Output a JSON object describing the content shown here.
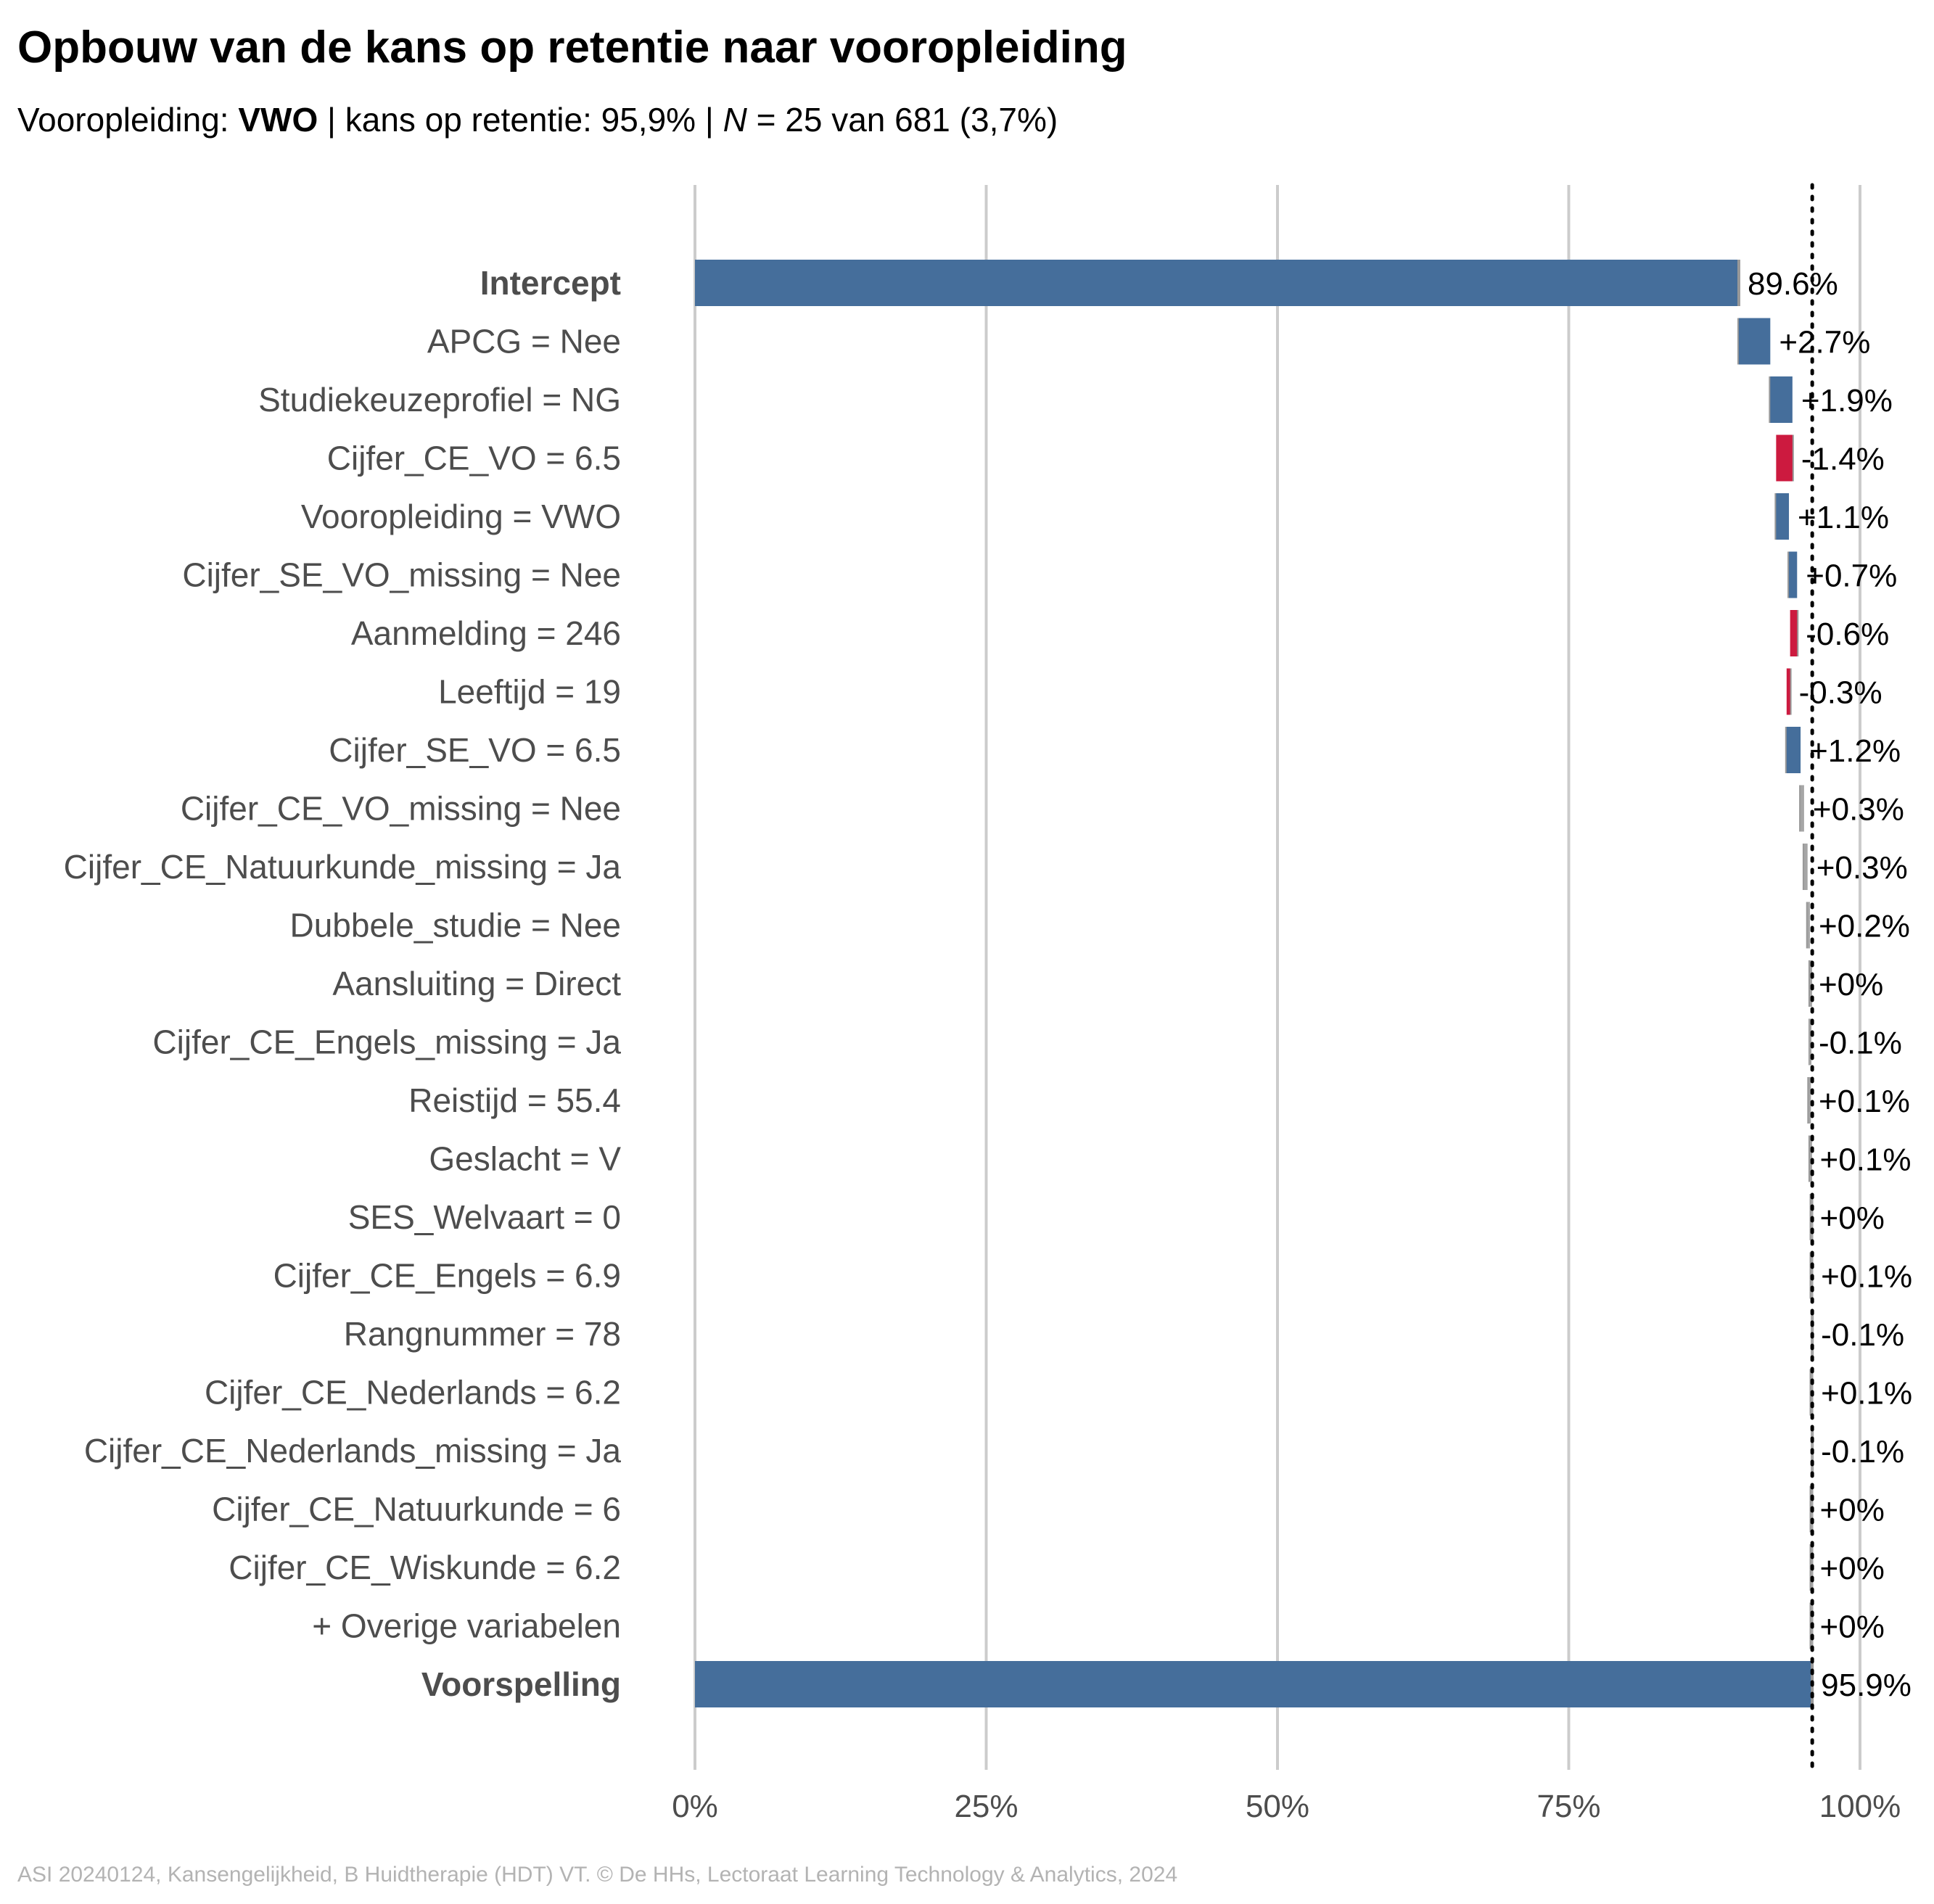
{
  "title": "Opbouw van de kans op retentie naar vooropleiding",
  "subtitle": {
    "prefix": "Vooropleiding: ",
    "group": "VWO",
    "middle": " | kans op retentie: 95,9% | ",
    "n_symbol": "N",
    "suffix": " = 25 van 681 (3,7%)"
  },
  "caption": "ASI 20240124, Kansengelijkheid, B Huidtherapie (HDT) VT. © De HHs, Lectoraat Learning Technology & Analytics, 2024",
  "colors": {
    "positive": "#456e9b",
    "negative": "#cc1a3f",
    "neutral": "#a6a6a6",
    "grid": "#cccccc",
    "connector": "#999999"
  },
  "chart_data": {
    "type": "waterfall",
    "xlim": [
      0,
      100
    ],
    "x_ticks": [
      "0%",
      "25%",
      "50%",
      "75%",
      "100%"
    ],
    "reference_line": 95.9,
    "rows": [
      {
        "label": "Intercept",
        "value": 89.6,
        "text": "89.6%",
        "kind": "total"
      },
      {
        "label": "APCG = Nee",
        "value": 2.7,
        "text": "+2.7%",
        "kind": "positive"
      },
      {
        "label": "Studiekeuzeprofiel = NG",
        "value": 1.9,
        "text": "+1.9%",
        "kind": "positive"
      },
      {
        "label": "Cijfer_CE_VO = 6.5",
        "value": -1.4,
        "text": "-1.4%",
        "kind": "negative"
      },
      {
        "label": "Vooropleiding = VWO",
        "value": 1.1,
        "text": "+1.1%",
        "kind": "positive"
      },
      {
        "label": "Cijfer_SE_VO_missing = Nee",
        "value": 0.7,
        "text": "+0.7%",
        "kind": "positive"
      },
      {
        "label": "Aanmelding = 246",
        "value": -0.6,
        "text": "-0.6%",
        "kind": "negative"
      },
      {
        "label": "Leeftijd = 19",
        "value": -0.3,
        "text": "-0.3%",
        "kind": "negative"
      },
      {
        "label": "Cijfer_SE_VO = 6.5",
        "value": 1.2,
        "text": "+1.2%",
        "kind": "positive"
      },
      {
        "label": "Cijfer_CE_VO_missing = Nee",
        "value": 0.3,
        "text": "+0.3%",
        "kind": "neutral"
      },
      {
        "label": "Cijfer_CE_Natuurkunde_missing = Ja",
        "value": 0.3,
        "text": "+0.3%",
        "kind": "neutral"
      },
      {
        "label": "Dubbele_studie = Nee",
        "value": 0.2,
        "text": "+0.2%",
        "kind": "neutral"
      },
      {
        "label": "Aansluiting = Direct",
        "value": 0,
        "text": "+0%",
        "kind": "neutral"
      },
      {
        "label": "Cijfer_CE_Engels_missing = Ja",
        "value": -0.1,
        "text": "-0.1%",
        "kind": "neutral"
      },
      {
        "label": "Reistijd = 55.4",
        "value": 0.1,
        "text": "+0.1%",
        "kind": "neutral"
      },
      {
        "label": "Geslacht = V",
        "value": 0.1,
        "text": "+0.1%",
        "kind": "neutral"
      },
      {
        "label": "SES_Welvaart = 0",
        "value": 0,
        "text": "+0%",
        "kind": "neutral"
      },
      {
        "label": "Cijfer_CE_Engels = 6.9",
        "value": 0.1,
        "text": "+0.1%",
        "kind": "neutral"
      },
      {
        "label": "Rangnummer = 78",
        "value": -0.1,
        "text": "-0.1%",
        "kind": "neutral"
      },
      {
        "label": "Cijfer_CE_Nederlands = 6.2",
        "value": 0.1,
        "text": "+0.1%",
        "kind": "neutral"
      },
      {
        "label": "Cijfer_CE_Nederlands_missing = Ja",
        "value": -0.1,
        "text": "-0.1%",
        "kind": "neutral"
      },
      {
        "label": "Cijfer_CE_Natuurkunde = 6",
        "value": 0,
        "text": "+0%",
        "kind": "neutral"
      },
      {
        "label": "Cijfer_CE_Wiskunde = 6.2",
        "value": 0,
        "text": "+0%",
        "kind": "neutral"
      },
      {
        "label": "+ Overige variabelen",
        "value": 0,
        "text": "+0%",
        "kind": "neutral"
      },
      {
        "label": "Voorspelling",
        "value": 95.9,
        "text": "95.9%",
        "kind": "total"
      }
    ]
  }
}
